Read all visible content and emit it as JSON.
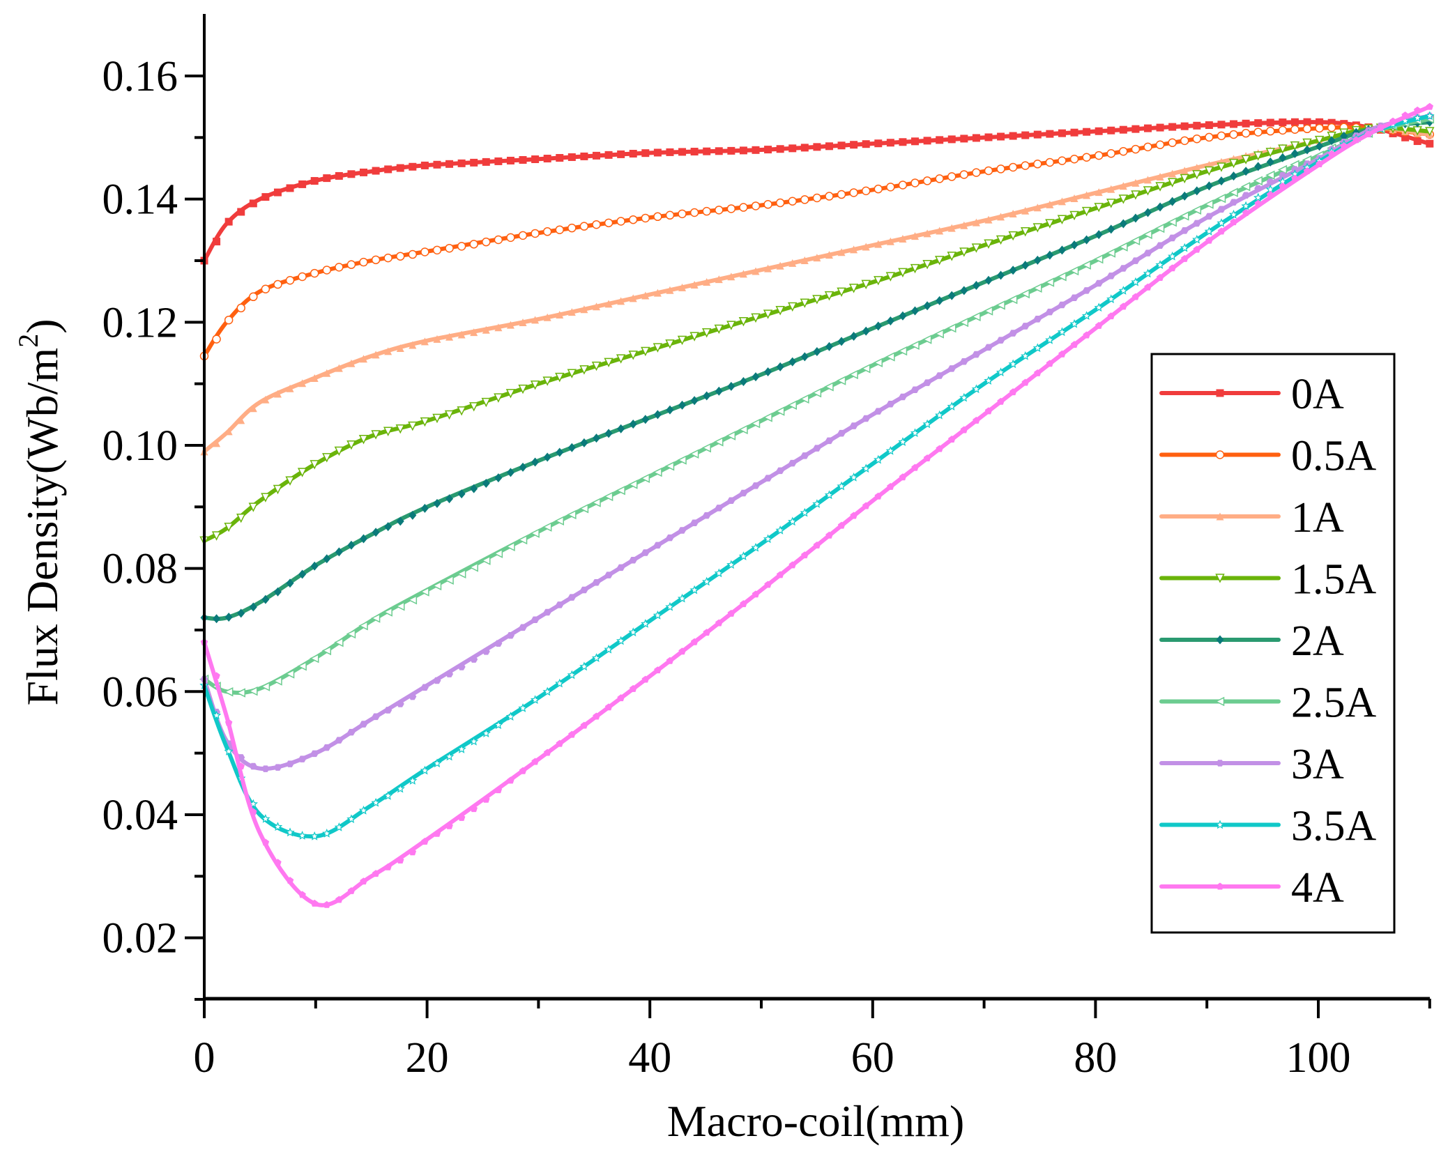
{
  "chart_data": {
    "type": "line",
    "title": "",
    "xlabel": "Macro-coil(mm)",
    "ylabel": "Flux Density(Wb/m",
    "ylabel_sup": "2",
    "ylabel_close": ")",
    "xlim": [
      0,
      110
    ],
    "ylim": [
      0.01,
      0.17
    ],
    "xticks": [
      0,
      20,
      40,
      60,
      80,
      100
    ],
    "xtick_labels": [
      "0",
      "20",
      "40",
      "60",
      "80",
      "100"
    ],
    "xminor_step": 10,
    "yticks": [
      0.02,
      0.04,
      0.06,
      0.08,
      0.1,
      0.12,
      0.14,
      0.16
    ],
    "ytick_labels": [
      "0.02",
      "0.04",
      "0.06",
      "0.08",
      "0.10",
      "0.12",
      "0.14",
      "0.16"
    ],
    "yminor_step": 0.01,
    "grid": false,
    "legend_position": "right",
    "x": [
      0,
      2,
      5,
      10,
      15,
      20,
      30,
      40,
      50,
      60,
      70,
      80,
      90,
      100,
      105,
      110
    ],
    "series": [
      {
        "name": "0A",
        "color": "#f03c3c",
        "marker": "square",
        "values": [
          0.13,
          0.136,
          0.14,
          0.143,
          0.1445,
          0.1455,
          0.1465,
          0.1475,
          0.148,
          0.149,
          0.15,
          0.151,
          0.152,
          0.1525,
          0.1515,
          0.149
        ]
      },
      {
        "name": "0.5A",
        "color": "#ff6010",
        "marker": "circle-open",
        "values": [
          0.1145,
          0.12,
          0.125,
          0.128,
          0.13,
          0.1315,
          0.1345,
          0.137,
          0.139,
          0.1415,
          0.1445,
          0.147,
          0.15,
          0.1515,
          0.1515,
          0.1505
        ]
      },
      {
        "name": "1A",
        "color": "#ffad85",
        "marker": "triangle-up",
        "values": [
          0.099,
          0.102,
          0.107,
          0.111,
          0.1145,
          0.117,
          0.1205,
          0.1245,
          0.1285,
          0.1325,
          0.1365,
          0.141,
          0.1455,
          0.1495,
          0.1515,
          0.1505
        ]
      },
      {
        "name": "1.5A",
        "color": "#6ab40a",
        "marker": "triangle-down-open",
        "values": [
          0.0845,
          0.0865,
          0.091,
          0.097,
          0.1015,
          0.104,
          0.11,
          0.1155,
          0.121,
          0.1265,
          0.1325,
          0.1385,
          0.1445,
          0.1495,
          0.1515,
          0.151
        ]
      },
      {
        "name": "2A",
        "color": "#2a9a70",
        "marker": "diamond",
        "marker_color": "#0a7a7a",
        "values": [
          0.072,
          0.072,
          0.0745,
          0.0805,
          0.0855,
          0.09,
          0.0975,
          0.1045,
          0.1115,
          0.119,
          0.1265,
          0.134,
          0.142,
          0.1485,
          0.1515,
          0.1525
        ]
      },
      {
        "name": "2.5A",
        "color": "#6ccc90",
        "marker": "triangle-left-open",
        "values": [
          0.062,
          0.06,
          0.0605,
          0.0655,
          0.0715,
          0.0765,
          0.086,
          0.095,
          0.104,
          0.113,
          0.1215,
          0.13,
          0.139,
          0.147,
          0.151,
          0.153
        ]
      },
      {
        "name": "3A",
        "color": "#c290e6",
        "marker": "hexagon",
        "values": [
          0.062,
          0.052,
          0.0475,
          0.05,
          0.0555,
          0.061,
          0.072,
          0.083,
          0.094,
          0.105,
          0.1155,
          0.126,
          0.137,
          0.1465,
          0.1515,
          0.1535
        ]
      },
      {
        "name": "3.5A",
        "color": "#10c8c8",
        "marker": "star-open",
        "values": [
          0.061,
          0.051,
          0.04,
          0.0365,
          0.0415,
          0.0475,
          0.059,
          0.0715,
          0.084,
          0.097,
          0.11,
          0.122,
          0.1345,
          0.146,
          0.151,
          0.1535
        ]
      },
      {
        "name": "4A",
        "color": "#ff78f0",
        "marker": "pentagon",
        "values": [
          0.068,
          0.056,
          0.037,
          0.0255,
          0.03,
          0.036,
          0.049,
          0.0625,
          0.0765,
          0.091,
          0.105,
          0.119,
          0.133,
          0.1455,
          0.151,
          0.155
        ]
      }
    ]
  }
}
